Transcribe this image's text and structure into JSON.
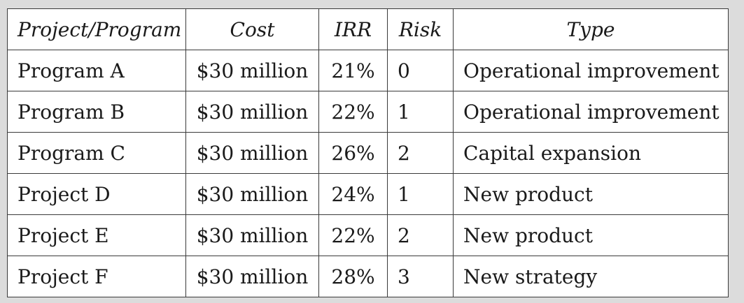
{
  "table": {
    "headers": [
      "Project/Program",
      "Cost",
      "IRR",
      "Risk",
      "Type"
    ],
    "rows": [
      [
        "Program A",
        "$30 million",
        "21%",
        "0",
        "Operational improvement"
      ],
      [
        "Program B",
        "$30 million",
        "22%",
        "1",
        "Operational improvement"
      ],
      [
        "Program C",
        "$30 million",
        "26%",
        "2",
        "Capital expansion"
      ],
      [
        "Project D",
        "$30 million",
        "24%",
        "1",
        "New product"
      ],
      [
        "Project E",
        "$30 million",
        "22%",
        "2",
        "New product"
      ],
      [
        "Project F",
        "$30 million",
        "28%",
        "3",
        "New strategy"
      ]
    ]
  }
}
